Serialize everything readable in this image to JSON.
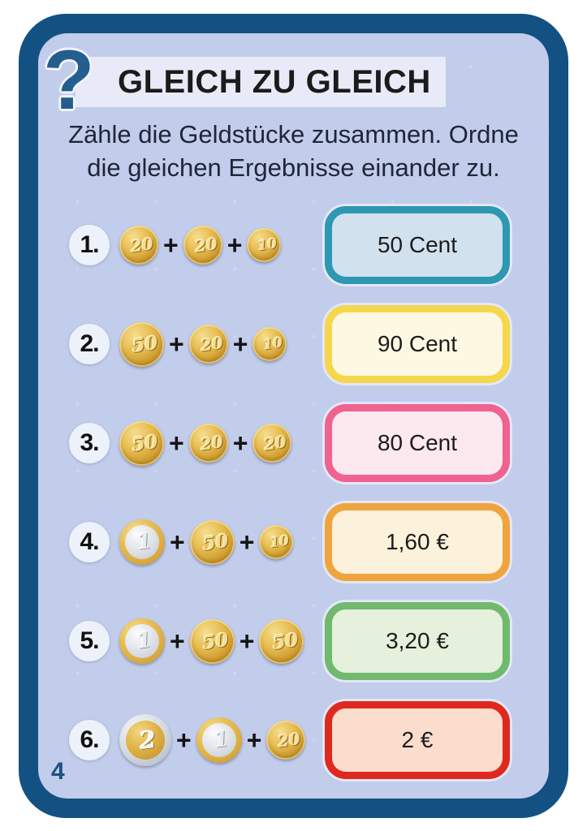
{
  "palette": {
    "page_bg": "#ffffff",
    "frame": "#135182",
    "card_bg": "#c2cceb",
    "title_bar_bg": "#e8ebf7",
    "title_text": "#1b1b1b",
    "question_mark": "#235e8e",
    "body_text": "#202637",
    "page_number": "#1d5280",
    "coin_gold": "#e0b449",
    "coin_silver": "#d3d8de"
  },
  "header": {
    "question_mark": "?",
    "title": "GLEICH ZU GLEICH"
  },
  "instructions": {
    "line1": "Zähle die Geldstücke zusammen. Ordne",
    "line2": "die gleichen Ergebnisse einander zu."
  },
  "operator": "+",
  "rows": [
    {
      "number": "1.",
      "coins": [
        {
          "value": "20",
          "kind": "cent-20",
          "name": "20-cent-coin"
        },
        {
          "value": "20",
          "kind": "cent-20",
          "name": "20-cent-coin"
        },
        {
          "value": "10",
          "kind": "cent-10",
          "name": "10-cent-coin"
        }
      ],
      "answer": {
        "label": "50 Cent",
        "border": "#2e97b2",
        "fill": "#d2e1ee"
      }
    },
    {
      "number": "2.",
      "coins": [
        {
          "value": "50",
          "kind": "cent-50",
          "name": "50-cent-coin"
        },
        {
          "value": "20",
          "kind": "cent-20",
          "name": "20-cent-coin"
        },
        {
          "value": "10",
          "kind": "cent-10",
          "name": "10-cent-coin"
        }
      ],
      "answer": {
        "label": "90 Cent",
        "border": "#f6d74c",
        "fill": "#fdf8e2"
      }
    },
    {
      "number": "3.",
      "coins": [
        {
          "value": "50",
          "kind": "cent-50",
          "name": "50-cent-coin"
        },
        {
          "value": "20",
          "kind": "cent-20",
          "name": "20-cent-coin"
        },
        {
          "value": "20",
          "kind": "cent-20",
          "name": "20-cent-coin"
        }
      ],
      "answer": {
        "label": "80 Cent",
        "border": "#f0628f",
        "fill": "#fce8ef"
      }
    },
    {
      "number": "4.",
      "coins": [
        {
          "value": "1",
          "kind": "euro-1",
          "name": "1-euro-coin"
        },
        {
          "value": "50",
          "kind": "cent-50",
          "name": "50-cent-coin"
        },
        {
          "value": "10",
          "kind": "cent-10",
          "name": "10-cent-coin"
        }
      ],
      "answer": {
        "label": "1,60 €",
        "border": "#f0a43e",
        "fill": "#fcf1da"
      }
    },
    {
      "number": "5.",
      "coins": [
        {
          "value": "1",
          "kind": "euro-1",
          "name": "1-euro-coin"
        },
        {
          "value": "50",
          "kind": "cent-50",
          "name": "50-cent-coin"
        },
        {
          "value": "50",
          "kind": "cent-50",
          "name": "50-cent-coin"
        }
      ],
      "answer": {
        "label": "3,20 €",
        "border": "#70b96e",
        "fill": "#e5f0dd"
      }
    },
    {
      "number": "6.",
      "coins": [
        {
          "value": "2",
          "kind": "euro-2",
          "name": "2-euro-coin"
        },
        {
          "value": "1",
          "kind": "euro-1",
          "name": "1-euro-coin"
        },
        {
          "value": "20",
          "kind": "cent-20",
          "name": "20-cent-coin"
        }
      ],
      "answer": {
        "label": "2 €",
        "border": "#e0291e",
        "fill": "#fbddce"
      }
    }
  ],
  "page": {
    "number": "4"
  }
}
